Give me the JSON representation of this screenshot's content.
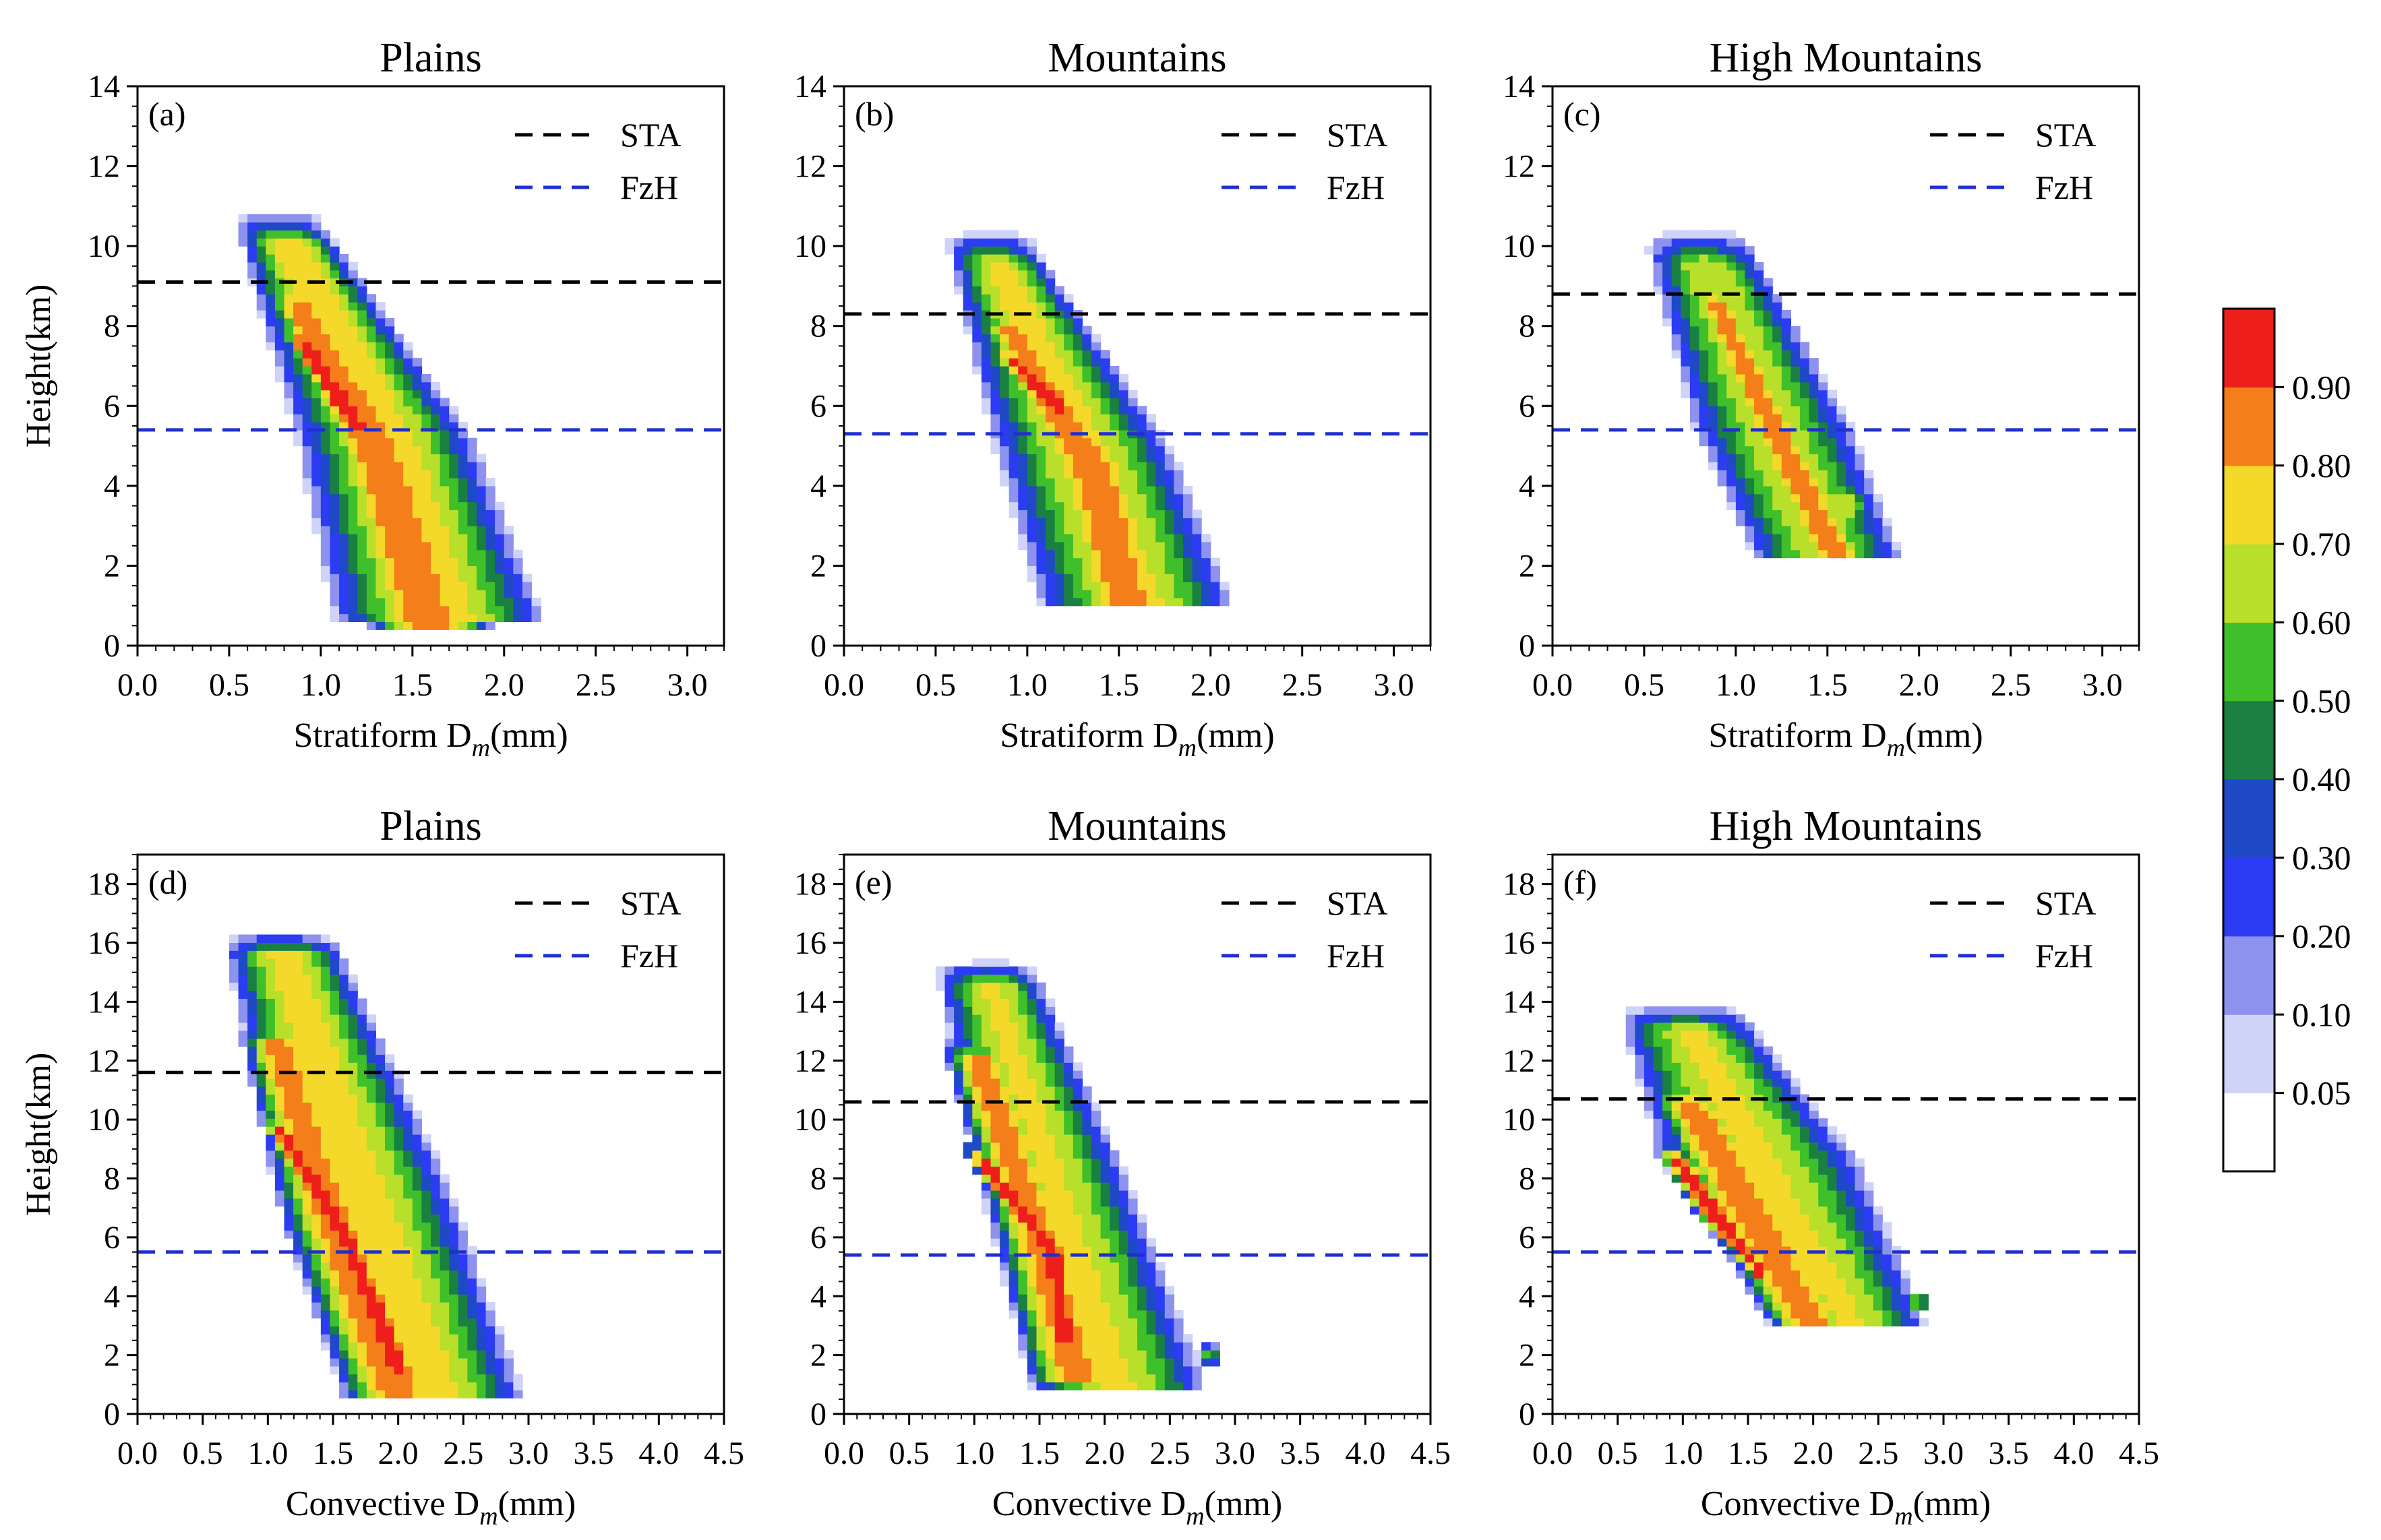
{
  "colorbar": {
    "levels": [
      "0.05",
      "0.10",
      "0.20",
      "0.30",
      "0.40",
      "0.50",
      "0.60",
      "0.70",
      "0.80",
      "0.90"
    ],
    "colors": [
      "#ffffff",
      "#cfd3f7",
      "#8c92ee",
      "#2b3cf2",
      "#1f49c6",
      "#1a8042",
      "#3fbf2a",
      "#b8df2a",
      "#f5d92a",
      "#f47e1a",
      "#ee1f1a"
    ]
  },
  "legend": {
    "sta_label": "STA",
    "fzh_label": "FzH",
    "sta_color": "#000000",
    "fzh_color": "#1f2fd0"
  },
  "chart_data": [
    {
      "id": "a",
      "label": "(a)",
      "title": "Plains",
      "type": "heatmap",
      "xlabel_main": "Stratiform D",
      "xlabel_sub": "m",
      "xlabel_unit": "(mm)",
      "ylabel": "Height(km)",
      "xlim": [
        0,
        3.2
      ],
      "ylim": [
        0,
        14
      ],
      "xticks": [
        "0.0",
        "0.5",
        "1.0",
        "1.5",
        "2.0",
        "2.5",
        "3.0"
      ],
      "xtick_step": 0.5,
      "yticks": [
        "0",
        "2",
        "4",
        "6",
        "8",
        "10",
        "12",
        "14"
      ],
      "ytick_step": 2,
      "sta_height": 9.1,
      "fzh_height": 5.4,
      "blobs": [
        {
          "cx": [
            0.78,
            1.35,
            1.65
          ],
          "cy": [
            10.5,
            5.2,
            0.6
          ],
          "hw": [
            0.25,
            0.5,
            0.6
          ],
          "peak": 0.78
        },
        {
          "cx": [
            0.82,
            1.3,
            1.6
          ],
          "cy": [
            9.0,
            5.0,
            0.5
          ],
          "hw": [
            0.14,
            0.3,
            0.35
          ],
          "peak": 0.9
        },
        {
          "cx": [
            0.85,
            1.2
          ],
          "cy": [
            8.0,
            5.5
          ],
          "hw": [
            0.1,
            0.14
          ],
          "peak": 1.0
        }
      ]
    },
    {
      "id": "b",
      "label": "(b)",
      "title": "Mountains",
      "type": "heatmap",
      "xlabel_main": "Stratiform D",
      "xlabel_sub": "m",
      "xlabel_unit": "(mm)",
      "ylabel": "",
      "xlim": [
        0,
        3.2
      ],
      "ylim": [
        0,
        14
      ],
      "xticks": [
        "0.0",
        "0.5",
        "1.0",
        "1.5",
        "2.0",
        "2.5",
        "3.0"
      ],
      "xtick_step": 0.5,
      "yticks": [
        "0",
        "2",
        "4",
        "6",
        "8",
        "10",
        "12",
        "14"
      ],
      "ytick_step": 2,
      "sta_height": 8.3,
      "fzh_height": 5.3,
      "blobs": [
        {
          "cx": [
            0.8,
            1.3,
            1.6
          ],
          "cy": [
            10.0,
            5.0,
            1.0
          ],
          "hw": [
            0.25,
            0.5,
            0.55
          ],
          "peak": 0.75
        },
        {
          "cx": [
            0.85,
            1.35,
            1.55
          ],
          "cy": [
            8.3,
            4.5,
            1.1
          ],
          "hw": [
            0.13,
            0.3,
            0.32
          ],
          "peak": 0.88
        },
        {
          "cx": [
            0.85,
            1.2
          ],
          "cy": [
            7.5,
            5.8
          ],
          "hw": [
            0.1,
            0.12
          ],
          "peak": 1.0
        }
      ]
    },
    {
      "id": "c",
      "label": "(c)",
      "title": "High Mountains",
      "type": "heatmap",
      "xlabel_main": "Stratiform D",
      "xlabel_sub": "m",
      "xlabel_unit": "(mm)",
      "ylabel": "",
      "xlim": [
        0,
        3.2
      ],
      "ylim": [
        0,
        14
      ],
      "xticks": [
        "0.0",
        "0.5",
        "1.0",
        "1.5",
        "2.0",
        "2.5",
        "3.0"
      ],
      "xtick_step": 0.5,
      "yticks": [
        "0",
        "2",
        "4",
        "6",
        "8",
        "10",
        "12",
        "14"
      ],
      "ytick_step": 2,
      "sta_height": 8.8,
      "fzh_height": 5.4,
      "blobs": [
        {
          "cx": [
            0.8,
            1.2,
            1.5
          ],
          "cy": [
            10.0,
            5.5,
            2.2
          ],
          "hw": [
            0.3,
            0.45,
            0.42
          ],
          "peak": 0.7
        },
        {
          "cx": [
            0.85,
            1.2,
            1.55
          ],
          "cy": [
            9.0,
            5.5,
            2.2
          ],
          "hw": [
            0.12,
            0.18,
            0.2
          ],
          "peak": 0.88
        },
        {
          "cx": [
            1.6
          ],
          "cy": [
            3.5
          ],
          "hw": [
            0.14
          ],
          "peak": 0.72
        }
      ]
    },
    {
      "id": "d",
      "label": "(d)",
      "title": "Plains",
      "type": "heatmap",
      "xlabel_main": "Convective D",
      "xlabel_sub": "m",
      "xlabel_unit": "(mm)",
      "ylabel": "Height(km)",
      "xlim": [
        0,
        4.5
      ],
      "ylim": [
        0,
        19
      ],
      "xticks": [
        "0.0",
        "0.5",
        "1.0",
        "1.5",
        "2.0",
        "2.5",
        "3.0",
        "3.5",
        "4.0",
        "4.5"
      ],
      "xtick_step": 0.5,
      "yticks": [
        "0",
        "2",
        "4",
        "6",
        "8",
        "10",
        "12",
        "14",
        "16",
        "18"
      ],
      "ytick_step": 2,
      "sta_height": 11.6,
      "fzh_height": 5.5,
      "blobs": [
        {
          "cx": [
            1.1,
            1.7,
            2.3
          ],
          "cy": [
            16.0,
            8.0,
            0.5
          ],
          "hw": [
            0.45,
            0.7,
            0.7
          ],
          "peak": 0.75
        },
        {
          "cx": [
            1.05,
            1.5,
            2.0
          ],
          "cy": [
            13.0,
            6.5,
            0.7
          ],
          "hw": [
            0.28,
            0.4,
            0.45
          ],
          "peak": 0.87
        },
        {
          "cx": [
            1.05,
            1.6,
            2.0
          ],
          "cy": [
            10.0,
            6.0,
            1.5
          ],
          "hw": [
            0.13,
            0.17,
            0.2
          ],
          "peak": 1.0
        }
      ]
    },
    {
      "id": "e",
      "label": "(e)",
      "title": "Mountains",
      "type": "heatmap",
      "xlabel_main": "Convective D",
      "xlabel_sub": "m",
      "xlabel_unit": "(mm)",
      "ylabel": "",
      "xlim": [
        0,
        4.5
      ],
      "ylim": [
        0,
        19
      ],
      "xticks": [
        "0.0",
        "0.5",
        "1.0",
        "1.5",
        "2.0",
        "2.5",
        "3.0",
        "3.5",
        "4.0",
        "4.5"
      ],
      "xtick_step": 0.5,
      "yticks": [
        "0",
        "2",
        "4",
        "6",
        "8",
        "10",
        "12",
        "14",
        "16",
        "18"
      ],
      "ytick_step": 2,
      "sta_height": 10.6,
      "fzh_height": 5.4,
      "blobs": [
        {
          "cx": [
            1.1,
            1.6,
            2.1
          ],
          "cy": [
            15.0,
            8.0,
            1.0
          ],
          "hw": [
            0.4,
            0.6,
            0.7
          ],
          "peak": 0.72
        },
        {
          "cx": [
            1.0,
            1.5,
            1.8
          ],
          "cy": [
            12.5,
            6.0,
            1.1
          ],
          "hw": [
            0.25,
            0.35,
            0.4
          ],
          "peak": 0.87
        },
        {
          "cx": [
            1.0,
            1.6,
            1.7
          ],
          "cy": [
            9.0,
            5.5,
            2.5
          ],
          "hw": [
            0.12,
            0.15,
            0.17
          ],
          "peak": 1.0
        },
        {
          "cx": [
            2.8
          ],
          "cy": [
            2.0
          ],
          "hw": [
            0.1
          ],
          "peak": 0.55
        }
      ]
    },
    {
      "id": "f",
      "label": "(f)",
      "title": "High Mountains",
      "type": "heatmap",
      "xlabel_main": "Convective D",
      "xlabel_sub": "m",
      "xlabel_unit": "(mm)",
      "ylabel": "",
      "xlim": [
        0,
        4.5
      ],
      "ylim": [
        0,
        19
      ],
      "xticks": [
        "0.0",
        "0.5",
        "1.0",
        "1.5",
        "2.0",
        "2.5",
        "3.0",
        "3.5",
        "4.0",
        "4.5"
      ],
      "xtick_step": 0.5,
      "yticks": [
        "0",
        "2",
        "4",
        "6",
        "8",
        "10",
        "12",
        "14",
        "16",
        "18"
      ],
      "ytick_step": 2,
      "sta_height": 10.7,
      "fzh_height": 5.5,
      "blobs": [
        {
          "cx": [
            1.0,
            1.6,
            2.3
          ],
          "cy": [
            13.5,
            8.5,
            3.0
          ],
          "hw": [
            0.5,
            0.8,
            0.6
          ],
          "peak": 0.72
        },
        {
          "cx": [
            1.0,
            1.5,
            2.0
          ],
          "cy": [
            11.0,
            7.0,
            3.0
          ],
          "hw": [
            0.28,
            0.4,
            0.35
          ],
          "peak": 0.88
        },
        {
          "cx": [
            0.9,
            1.3,
            1.6
          ],
          "cy": [
            9.0,
            6.5,
            4.8
          ],
          "hw": [
            0.13,
            0.17,
            0.1
          ],
          "peak": 1.0
        },
        {
          "cx": [
            2.8
          ],
          "cy": [
            3.8
          ],
          "hw": [
            0.1
          ],
          "peak": 0.68
        }
      ]
    }
  ]
}
